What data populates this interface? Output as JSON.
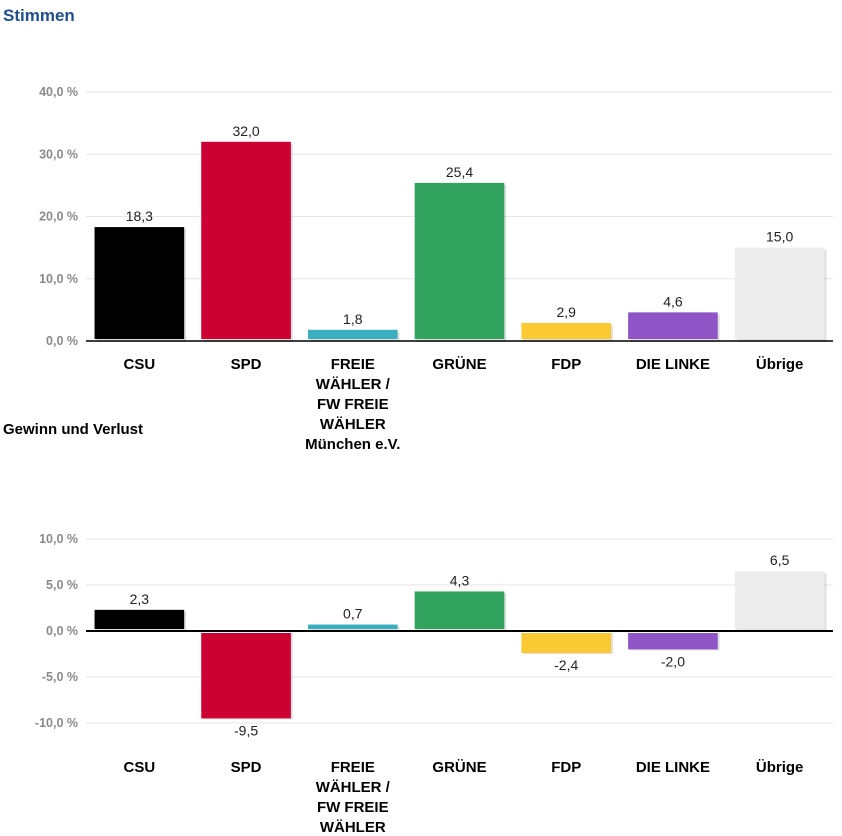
{
  "header": {
    "title": "Stimmen"
  },
  "section2": {
    "title": "Gewinn und Verlust"
  },
  "chart_data": [
    {
      "type": "bar",
      "title": "Stimmen",
      "categories": [
        "CSU",
        "SPD",
        "FREIE WÄHLER / FW FREIE WÄHLER München e.V.",
        "GRÜNE",
        "FDP",
        "DIE LINKE",
        "Übrige"
      ],
      "category_lines": [
        [
          "CSU"
        ],
        [
          "SPD"
        ],
        [
          "FREIE",
          "WÄHLER /",
          "FW FREIE",
          "WÄHLER",
          "München e.V."
        ],
        [
          "GRÜNE"
        ],
        [
          "FDP"
        ],
        [
          "DIE LINKE"
        ],
        [
          "Übrige"
        ]
      ],
      "values": [
        18.3,
        32.0,
        1.8,
        25.4,
        2.9,
        4.6,
        15.0
      ],
      "value_labels": [
        "18,3",
        "32,0",
        "1,8",
        "25,4",
        "2,9",
        "4,6",
        "15,0"
      ],
      "colors": [
        "#000000",
        "#cc0033",
        "#3aafc0",
        "#32a35f",
        "#fbc932",
        "#8f55c6",
        "#ececec"
      ],
      "ylim": [
        0,
        40
      ],
      "yticks": [
        0,
        10,
        20,
        30,
        40
      ],
      "ytick_labels": [
        "0,0 %",
        "10,0 %",
        "20,0 %",
        "30,0 %",
        "40,0 %"
      ],
      "grid": true,
      "xlabel": "",
      "ylabel": ""
    },
    {
      "type": "bar",
      "title": "Gewinn und Verlust",
      "categories": [
        "CSU",
        "SPD",
        "FREIE WÄHLER / FW FREIE WÄHLER",
        "GRÜNE",
        "FDP",
        "DIE LINKE",
        "Übrige"
      ],
      "category_lines": [
        [
          "CSU"
        ],
        [
          "SPD"
        ],
        [
          "FREIE",
          "WÄHLER /",
          "FW FREIE",
          "WÄHLER"
        ],
        [
          "GRÜNE"
        ],
        [
          "FDP"
        ],
        [
          "DIE LINKE"
        ],
        [
          "Übrige"
        ]
      ],
      "values": [
        2.3,
        -9.5,
        0.7,
        4.3,
        -2.4,
        -2.0,
        6.5
      ],
      "value_labels": [
        "2,3",
        "-9,5",
        "0,7",
        "4,3",
        "-2,4",
        "-2,0",
        "6,5"
      ],
      "colors": [
        "#000000",
        "#cc0033",
        "#3aafc0",
        "#32a35f",
        "#fbc932",
        "#8f55c6",
        "#ececec"
      ],
      "ylim": [
        -10,
        10
      ],
      "yticks": [
        -10,
        -5,
        0,
        5,
        10
      ],
      "ytick_labels": [
        "-10,0 %",
        "-5,0 %",
        "0,0 %",
        "5,0 %",
        "10,0 %"
      ],
      "grid": true,
      "xlabel": "",
      "ylabel": ""
    }
  ]
}
